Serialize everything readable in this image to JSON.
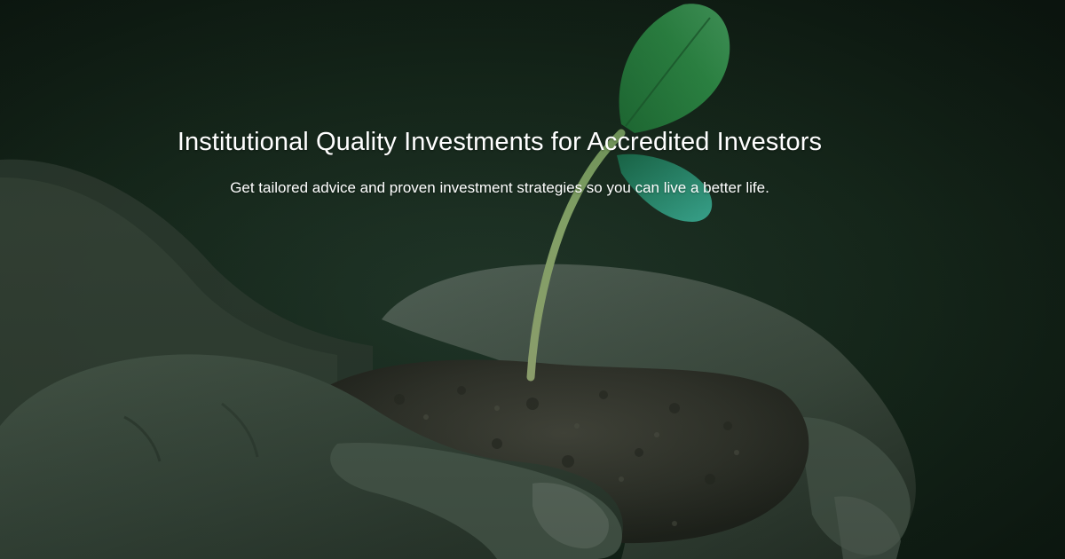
{
  "hero": {
    "headline": "Institutional Quality Investments for Accredited Investors",
    "subheadline": "Get tailored advice and proven investment strategies so you can live a better life."
  },
  "colors": {
    "background": "#0f1a12",
    "text": "#ffffff",
    "leaf": "#2f8a4a",
    "soil": "#3a3a32"
  },
  "icons": {
    "background_image": "seedling-in-cupped-hands"
  }
}
